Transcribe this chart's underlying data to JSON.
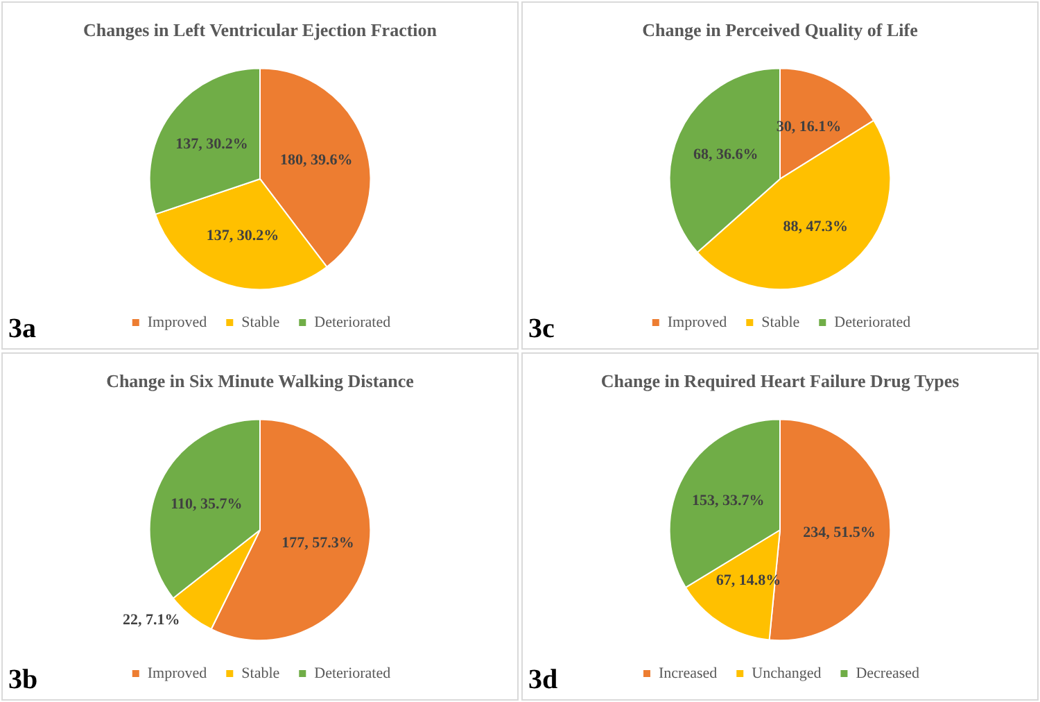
{
  "chart_data": [
    {
      "type": "pie",
      "title": "Changes in Left Ventricular Ejection Fraction",
      "categories": [
        "Improved",
        "Stable",
        "Deteriorated"
      ],
      "values": [
        180,
        137,
        137
      ],
      "colors": [
        "#ed7d31",
        "#ffc000",
        "#70ad47"
      ],
      "value_labels": [
        "180, 39.6%",
        "137, 30.2%",
        "137, 30.2%"
      ],
      "legend": "bottom",
      "annotations": [
        "3a"
      ]
    },
    {
      "type": "pie",
      "title": "Change in Perceived Quality of Life",
      "categories": [
        "Improved",
        "Stable",
        "Deteriorated"
      ],
      "values": [
        30,
        88,
        68
      ],
      "colors": [
        "#ed7d31",
        "#ffc000",
        "#70ad47"
      ],
      "value_labels": [
        "30, 16.1%",
        "88, 47.3%",
        "68, 36.6%"
      ],
      "legend": "bottom",
      "annotations": [
        "3c"
      ]
    },
    {
      "type": "pie",
      "title": "Change in Six Minute Walking Distance",
      "categories": [
        "Improved",
        "Stable",
        "Deteriorated"
      ],
      "values": [
        177,
        22,
        110
      ],
      "colors": [
        "#ed7d31",
        "#ffc000",
        "#70ad47"
      ],
      "value_labels": [
        "177, 57.3%",
        "22, 7.1%",
        "110, 35.7%"
      ],
      "legend": "bottom",
      "annotations": [
        "3b"
      ]
    },
    {
      "type": "pie",
      "title": "Change in Required Heart Failure Drug Types",
      "categories": [
        "Increased",
        "Unchanged",
        "Decreased"
      ],
      "values": [
        234,
        67,
        153
      ],
      "colors": [
        "#ed7d31",
        "#ffc000",
        "#70ad47"
      ],
      "value_labels": [
        "234, 51.5%",
        "67, 14.8%",
        "153, 33.7%"
      ],
      "legend": "bottom",
      "annotations": [
        "3d"
      ]
    }
  ]
}
